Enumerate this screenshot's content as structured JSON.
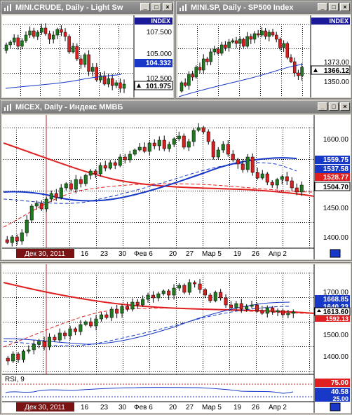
{
  "windows": {
    "crude": {
      "title": "MINI.CRUDE, Daily - Light Sw",
      "index_label": "INDEX",
      "price_ticks": [
        "107.500",
        "105.000",
        "102.500"
      ],
      "ma_value": "104.332",
      "last_value": "101.975"
    },
    "sp": {
      "title": "MINI.SP, Daily - SP500 Index",
      "index_label": "INDEX",
      "price_ticks": [
        "1373.00",
        "1350.00"
      ],
      "last_value": "1366.12"
    },
    "micex": {
      "title": "MICEX, Daily - Индекс ММВБ",
      "price_ticks": [
        "1600.00",
        "1450.00",
        "1400.00"
      ],
      "level_559": "1559.75",
      "level_537": "1537.58",
      "level_528": "1528.77",
      "last_value": "1504.70",
      "date_badge": "Дек 30, 2011",
      "date_ticks": [
        "16",
        "23",
        "30",
        "Фев 6",
        "20",
        "27",
        "Мар 5",
        "19",
        "26",
        "Апр 2"
      ]
    },
    "bottom": {
      "price_ticks": [
        "1700.00",
        "1500.00",
        "1400.00"
      ],
      "level_668": "1668.85",
      "level_640": "1640.23",
      "last_value": "1613.60",
      "level_592": "1592.13",
      "rsi_label": "RSI, 9",
      "rsi_75": "75.00",
      "rsi_40": "40.58",
      "rsi_25": "25.00",
      "date_badge": "Дек 30, 2011",
      "date_ticks": [
        "16",
        "23",
        "30",
        "Фев 6",
        "20",
        "27",
        "Мар 5",
        "19",
        "26",
        "Апр 2"
      ]
    }
  },
  "window_buttons": {
    "minimize": "_",
    "maximize": "□",
    "close": "×"
  },
  "colors": {
    "bull": "#1f7a1f",
    "bear": "#d81e1e",
    "ma_blue": "#1838c8",
    "ma_red": "#e02020",
    "title_grey": "#8a8a8a"
  }
}
